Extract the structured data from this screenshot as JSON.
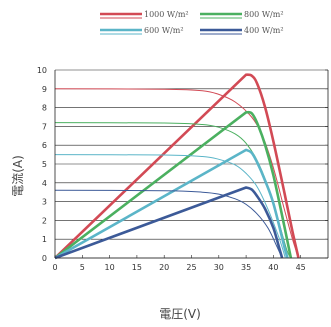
{
  "chart_data": {
    "type": "line",
    "xlabel": "電圧(V)",
    "ylabel": "電流(A)",
    "xlim": [
      0,
      50
    ],
    "ylim": [
      0,
      10
    ],
    "xticks": [
      0,
      5,
      10,
      15,
      20,
      25,
      30,
      35,
      40,
      45
    ],
    "yticks": [
      0,
      1,
      2,
      3,
      4,
      5,
      6,
      7,
      8,
      9,
      10
    ],
    "grid": "horizontal",
    "legend_position": "top",
    "series": [
      {
        "name": "1000 W/m²",
        "color": "#d24a55",
        "current": [
          [
            0,
            9.0
          ],
          [
            20,
            8.98
          ],
          [
            27,
            8.9
          ],
          [
            30,
            8.7
          ],
          [
            33,
            8.3
          ],
          [
            36,
            7.5
          ],
          [
            38,
            6.5
          ],
          [
            40,
            4.8
          ],
          [
            42,
            2.6
          ],
          [
            43.5,
            1.0
          ],
          [
            44.6,
            0
          ]
        ],
        "power_scaled": [
          [
            0,
            0
          ],
          [
            35,
            9.75
          ],
          [
            36,
            9.7
          ],
          [
            37,
            9.3
          ],
          [
            38.5,
            8.0
          ],
          [
            40,
            6.2
          ],
          [
            42,
            3.5
          ],
          [
            43.5,
            1.4
          ],
          [
            44.6,
            0
          ]
        ]
      },
      {
        "name": "800 W/m²",
        "color": "#4bb060",
        "current": [
          [
            0,
            7.2
          ],
          [
            20,
            7.18
          ],
          [
            27,
            7.1
          ],
          [
            30,
            6.95
          ],
          [
            33,
            6.6
          ],
          [
            35,
            6.1
          ],
          [
            37,
            5.2
          ],
          [
            39,
            3.8
          ],
          [
            41,
            1.9
          ],
          [
            42.5,
            0.4
          ],
          [
            43.2,
            0
          ]
        ],
        "power_scaled": [
          [
            0,
            0
          ],
          [
            35,
            7.75
          ],
          [
            36,
            7.7
          ],
          [
            37,
            7.2
          ],
          [
            38.5,
            6.0
          ],
          [
            40,
            4.4
          ],
          [
            42,
            1.7
          ],
          [
            43.2,
            0
          ]
        ]
      },
      {
        "name": "600 W/m²",
        "color": "#5bb5c8",
        "current": [
          [
            0,
            5.5
          ],
          [
            20,
            5.48
          ],
          [
            27,
            5.4
          ],
          [
            30,
            5.25
          ],
          [
            33,
            4.95
          ],
          [
            35,
            4.5
          ],
          [
            37,
            3.8
          ],
          [
            39,
            2.6
          ],
          [
            41,
            1.1
          ],
          [
            42.2,
            0
          ]
        ],
        "power_scaled": [
          [
            0,
            0
          ],
          [
            35,
            5.75
          ],
          [
            36,
            5.6
          ],
          [
            37,
            5.1
          ],
          [
            38.5,
            4.1
          ],
          [
            40,
            2.9
          ],
          [
            42,
            0.6
          ],
          [
            42.6,
            0
          ]
        ]
      },
      {
        "name": "400 W/m²",
        "color": "#3c5a98",
        "current": [
          [
            0,
            3.6
          ],
          [
            20,
            3.58
          ],
          [
            27,
            3.5
          ],
          [
            30,
            3.4
          ],
          [
            33,
            3.15
          ],
          [
            35,
            2.85
          ],
          [
            37,
            2.35
          ],
          [
            39,
            1.6
          ],
          [
            40.5,
            0.7
          ],
          [
            41.6,
            0
          ]
        ],
        "power_scaled": [
          [
            0,
            0
          ],
          [
            35,
            3.75
          ],
          [
            36,
            3.65
          ],
          [
            37,
            3.3
          ],
          [
            38.5,
            2.6
          ],
          [
            40,
            1.6
          ],
          [
            41,
            0.6
          ],
          [
            41.6,
            0
          ]
        ]
      }
    ]
  }
}
